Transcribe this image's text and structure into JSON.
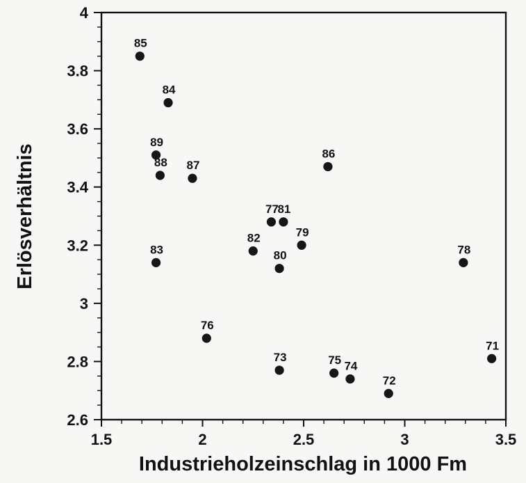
{
  "chart_data": {
    "type": "scatter",
    "title": "",
    "xlabel": "Industrieholzeinschlag in 1000 Fm",
    "ylabel": "Erlösverhältnis",
    "xlim": [
      1.5,
      3.5
    ],
    "ylim": [
      2.6,
      4.0
    ],
    "grid": false,
    "x_ticks": [
      1.5,
      2.0,
      2.5,
      3.0,
      3.5
    ],
    "x_tick_labels": [
      "1.5",
      "2",
      "2.5",
      "3",
      "3.5"
    ],
    "y_ticks": [
      2.6,
      2.8,
      3.0,
      3.2,
      3.4,
      3.6,
      3.8,
      4.0
    ],
    "y_tick_labels": [
      "2.6",
      "2.8",
      "3",
      "3.2",
      "3.4",
      "3.6",
      "3.8",
      "4"
    ],
    "points": [
      {
        "label": "85",
        "x": 1.69,
        "y": 3.85
      },
      {
        "label": "84",
        "x": 1.83,
        "y": 3.69
      },
      {
        "label": "89",
        "x": 1.77,
        "y": 3.51
      },
      {
        "label": "88",
        "x": 1.79,
        "y": 3.44
      },
      {
        "label": "87",
        "x": 1.95,
        "y": 3.43
      },
      {
        "label": "86",
        "x": 2.62,
        "y": 3.47
      },
      {
        "label": "77",
        "x": 2.34,
        "y": 3.28
      },
      {
        "label": "81",
        "x": 2.4,
        "y": 3.28
      },
      {
        "label": "79",
        "x": 2.49,
        "y": 3.2
      },
      {
        "label": "82",
        "x": 2.25,
        "y": 3.18
      },
      {
        "label": "80",
        "x": 2.38,
        "y": 3.12
      },
      {
        "label": "83",
        "x": 1.77,
        "y": 3.14
      },
      {
        "label": "78",
        "x": 3.29,
        "y": 3.14
      },
      {
        "label": "76",
        "x": 2.02,
        "y": 2.88
      },
      {
        "label": "73",
        "x": 2.38,
        "y": 2.77
      },
      {
        "label": "75",
        "x": 2.65,
        "y": 2.76
      },
      {
        "label": "74",
        "x": 2.73,
        "y": 2.74
      },
      {
        "label": "72",
        "x": 2.92,
        "y": 2.69
      },
      {
        "label": "71",
        "x": 3.43,
        "y": 2.81
      }
    ]
  },
  "style": {
    "point_color": "#161616",
    "axis_color": "#111111",
    "background": "#f7f7f5"
  }
}
